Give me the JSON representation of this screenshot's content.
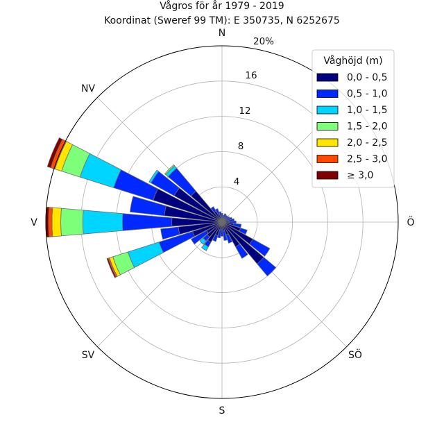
{
  "chart_data": {
    "type": "windrose",
    "title": "Vågros för år 1979 - 2019",
    "subtitle": "Koordinat (Sweref 99 TM): E 350735, N 6252675",
    "directions": [
      "N",
      "NV",
      "V",
      "SV",
      "S",
      "SÖ",
      "Ö"
    ],
    "r_ticks": [
      "4",
      "8",
      "12",
      "16",
      "20%"
    ],
    "r_max": 20,
    "grid": true,
    "legend": {
      "title": "Våghöjd (m)",
      "placement": "top-right",
      "bins": [
        {
          "label": "0,0 - 0,5",
          "color": "#00007f"
        },
        {
          "label": "0,5 - 1,0",
          "color": "#0029ff"
        },
        {
          "label": "1,0 - 1,5",
          "color": "#00d5ff"
        },
        {
          "label": "1,5 - 2,0",
          "color": "#7dff7a"
        },
        {
          "label": "2,0 - 2,5",
          "color": "#ffe500"
        },
        {
          "label": "2,5 - 3,0",
          "color": "#ff4a00"
        },
        {
          "label": "≥ 3,0",
          "color": "#7f0000"
        }
      ]
    },
    "sectors": [
      {
        "dir_deg": 0.0,
        "cum": [
          0.4,
          1.0
        ]
      },
      {
        "dir_deg": 11.25,
        "cum": [
          0.3,
          0.8
        ]
      },
      {
        "dir_deg": 22.5,
        "cum": [
          0.4,
          1.0
        ]
      },
      {
        "dir_deg": 33.75,
        "cum": [
          0.4,
          0.9
        ]
      },
      {
        "dir_deg": 45.0,
        "cum": [
          0.4,
          0.9
        ]
      },
      {
        "dir_deg": 56.25,
        "cum": [
          0.5,
          1.0
        ]
      },
      {
        "dir_deg": 67.5,
        "cum": [
          0.6,
          1.2
        ]
      },
      {
        "dir_deg": 78.75,
        "cum": [
          0.7,
          1.4
        ]
      },
      {
        "dir_deg": 90.0,
        "cum": [
          0.8,
          1.6
        ]
      },
      {
        "dir_deg": 101.25,
        "cum": [
          1.3,
          2.2
        ]
      },
      {
        "dir_deg": 112.5,
        "cum": [
          2.2,
          3.0
        ]
      },
      {
        "dir_deg": 123.75,
        "cum": [
          4.0,
          6.2
        ]
      },
      {
        "dir_deg": 135.0,
        "cum": [
          6.2,
          8.0
        ]
      },
      {
        "dir_deg": 146.25,
        "cum": [
          3.2,
          4.7
        ]
      },
      {
        "dir_deg": 157.5,
        "cum": [
          1.5,
          2.5
        ]
      },
      {
        "dir_deg": 168.75,
        "cum": [
          1.0,
          2.1
        ]
      },
      {
        "dir_deg": 180.0,
        "cum": [
          0.8,
          1.6
        ]
      },
      {
        "dir_deg": 191.25,
        "cum": [
          0.9,
          1.8
        ]
      },
      {
        "dir_deg": 202.5,
        "cum": [
          1.6,
          2.3
        ]
      },
      {
        "dir_deg": 213.75,
        "cum": [
          2.6,
          3.2,
          3.7
        ]
      },
      {
        "dir_deg": 225.0,
        "cum": [
          2.2,
          2.8,
          3.3
        ]
      },
      {
        "dir_deg": 236.25,
        "cum": [
          2.0,
          4.0
        ]
      },
      {
        "dir_deg": 247.5,
        "cum": [
          3.5,
          7.5,
          11.2,
          13.0,
          13.4,
          13.55,
          13.7
        ]
      },
      {
        "dir_deg": 258.75,
        "cum": [
          5.0,
          7.0
        ]
      },
      {
        "dir_deg": 270.0,
        "cum": [
          5.7,
          11.3,
          15.8,
          18.3,
          19.3,
          19.7,
          20.0
        ]
      },
      {
        "dir_deg": 281.25,
        "cum": [
          6.6,
          10.5
        ]
      },
      {
        "dir_deg": 292.5,
        "cum": [
          8.2,
          12.9,
          16.9,
          19.1,
          19.9,
          20.4,
          20.8
        ]
      },
      {
        "dir_deg": 303.75,
        "cum": [
          6.2,
          9.2,
          9.45
        ]
      },
      {
        "dir_deg": 315.0,
        "cum": [
          4.6,
          8.0,
          8.35,
          8.5
        ]
      },
      {
        "dir_deg": 326.25,
        "cum": [
          1.4,
          2.0
        ]
      },
      {
        "dir_deg": 337.5,
        "cum": [
          1.0,
          1.6
        ]
      },
      {
        "dir_deg": 348.75,
        "cum": [
          0.7,
          1.2
        ]
      }
    ]
  }
}
